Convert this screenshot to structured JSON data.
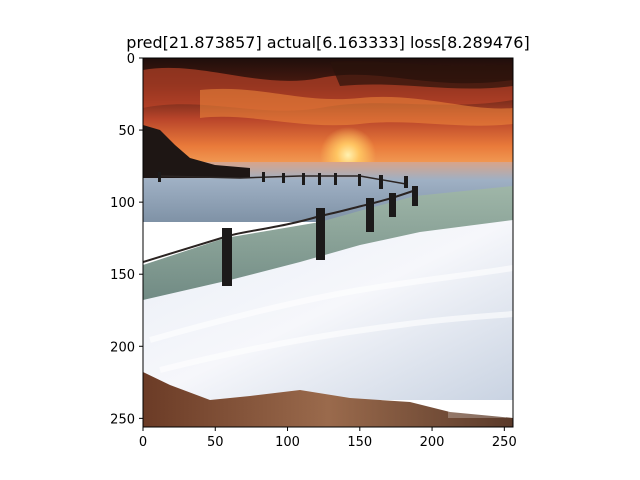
{
  "chart_data": {
    "type": "image",
    "title": "pred[21.873857] actual[6.163333] loss[8.289476]",
    "xlabel": "",
    "ylabel": "",
    "xlim": [
      0,
      256
    ],
    "ylim": [
      256,
      0
    ],
    "x_ticks": [
      "0",
      "50",
      "100",
      "150",
      "200",
      "250"
    ],
    "y_ticks": [
      "0",
      "50",
      "100",
      "150",
      "200",
      "250"
    ],
    "grid": false,
    "legend": "none",
    "image_content": "seascape-sunset-photo",
    "watermark_icon": "photographer-watermark-icon",
    "colors": {
      "sky_top": "#2a120c",
      "sky_glow": "#e2562a",
      "sun": "#ffd27a",
      "sea": "#c9d6e4",
      "water_dark": "#5d7388",
      "rocks": "#8a5a3e",
      "posts": "#1c1a1a"
    }
  }
}
